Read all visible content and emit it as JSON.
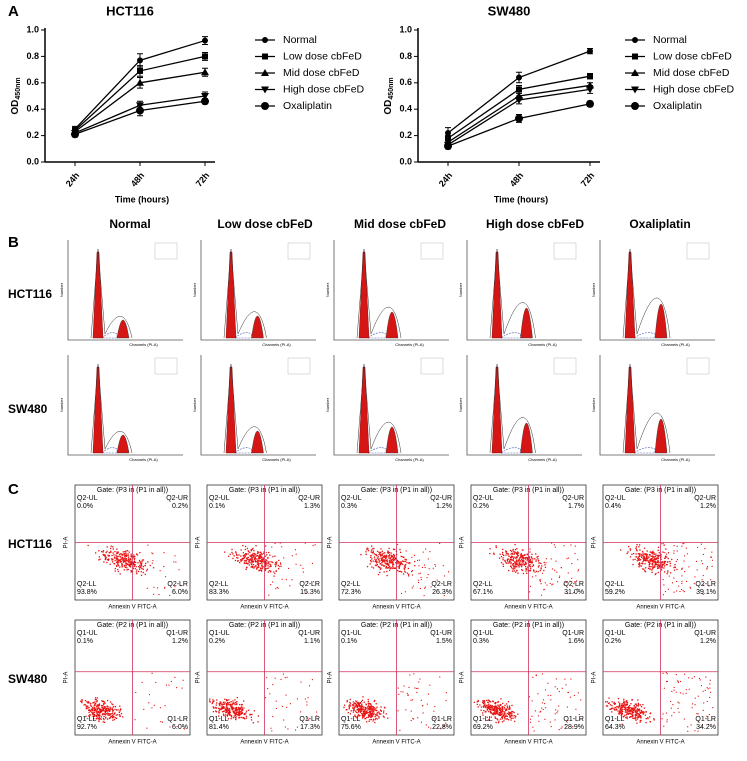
{
  "chart_data": [
    {
      "type": "line",
      "title": "HCT116",
      "xlabel": "Time (hours)",
      "ylabel": {
        "main": "OD",
        "sub": "450nm"
      },
      "categories": [
        "24h",
        "48h",
        "72h"
      ],
      "ylim": [
        0,
        1
      ],
      "yticks": [
        {
          "value": 0,
          "label": "0.0"
        },
        {
          "value": 0.2,
          "label": "0.2"
        },
        {
          "value": 0.4,
          "label": "0.4"
        },
        {
          "value": 0.6,
          "label": "0.6"
        },
        {
          "value": 0.8,
          "label": "0.8"
        },
        {
          "value": 1,
          "label": "1.0"
        }
      ],
      "series": [
        {
          "name": "Normal",
          "color": "#000000",
          "marker": "circle",
          "values": [
            0.25,
            0.77,
            0.92
          ],
          "errors": [
            0.02,
            0.05,
            0.03
          ]
        },
        {
          "name": "Low dose cbFeD",
          "color": "#000000",
          "marker": "square",
          "values": [
            0.24,
            0.69,
            0.8
          ],
          "errors": [
            0.02,
            0.04,
            0.03
          ]
        },
        {
          "name": "Mid dose cbFeD",
          "color": "#000000",
          "marker": "triangle-up",
          "values": [
            0.23,
            0.6,
            0.68
          ],
          "errors": [
            0.02,
            0.04,
            0.03
          ]
        },
        {
          "name": "High dose cbFeD",
          "color": "#000000",
          "marker": "triangle-down",
          "values": [
            0.22,
            0.43,
            0.5
          ],
          "errors": [
            0.02,
            0.03,
            0.03
          ]
        },
        {
          "name": "Oxaliplatin",
          "color": "#000000",
          "marker": "circle-large",
          "values": [
            0.21,
            0.39,
            0.46
          ],
          "errors": [
            0.02,
            0.04,
            0.02
          ]
        }
      ]
    },
    {
      "type": "line",
      "title": "SW480",
      "xlabel": "Time (hours)",
      "ylabel": {
        "main": "OD",
        "sub": "450nm"
      },
      "categories": [
        "24h",
        "48h",
        "72h"
      ],
      "ylim": [
        0,
        1
      ],
      "yticks": [
        {
          "value": 0,
          "label": "0.0"
        },
        {
          "value": 0.2,
          "label": "0.2"
        },
        {
          "value": 0.4,
          "label": "0.4"
        },
        {
          "value": 0.6,
          "label": "0.6"
        },
        {
          "value": 0.8,
          "label": "0.8"
        },
        {
          "value": 1,
          "label": "1.0"
        }
      ],
      "series": [
        {
          "name": "Normal",
          "color": "#000000",
          "marker": "circle",
          "values": [
            0.22,
            0.64,
            0.84
          ],
          "errors": [
            0.04,
            0.04,
            0.02
          ]
        },
        {
          "name": "Low dose cbFeD",
          "color": "#000000",
          "marker": "square",
          "values": [
            0.18,
            0.55,
            0.65
          ],
          "errors": [
            0.02,
            0.03,
            0.02
          ]
        },
        {
          "name": "Mid dose cbFeD",
          "color": "#000000",
          "marker": "triangle-up",
          "values": [
            0.15,
            0.5,
            0.58
          ],
          "errors": [
            0.02,
            0.03,
            0.02
          ]
        },
        {
          "name": "High dose cbFeD",
          "color": "#000000",
          "marker": "triangle-down",
          "values": [
            0.13,
            0.47,
            0.55
          ],
          "errors": [
            0.02,
            0.03,
            0.03
          ]
        },
        {
          "name": "Oxaliplatin",
          "color": "#000000",
          "marker": "circle-large",
          "values": [
            0.12,
            0.33,
            0.44
          ],
          "errors": [
            0.02,
            0.03,
            0.02
          ]
        }
      ]
    }
  ],
  "panel_labels": [
    "A",
    "B",
    "C"
  ],
  "columns": [
    "Normal",
    "Low dose cbFeD",
    "Mid dose cbFeD",
    "High dose cbFeD",
    "Oxaliplatin"
  ],
  "rows": [
    "HCT116",
    "SW480"
  ],
  "cell_cycle": {
    "x_label": "Channels (PI-A)",
    "y_label": "Number"
  },
  "apoptosis": {
    "x_label": "Annexin V FITC-A",
    "y_label": "PI-A",
    "gates": [
      "Gate: (P3 in (P1 in all))",
      "Gate: (P2 in (P1 in all))"
    ],
    "quadrant_names": [
      [
        "Q2-UL",
        "Q2-UR",
        "Q2-LL",
        "Q2-LR"
      ],
      [
        "Q1-UL",
        "Q1-UR",
        "Q1-LL",
        "Q1-LR"
      ]
    ],
    "percentages": [
      [
        [
          "0.0%",
          "0.2%",
          "93.8%",
          "6.0%"
        ],
        [
          "0.1%",
          "1.3%",
          "83.3%",
          "15.3%"
        ],
        [
          "0.3%",
          "1.2%",
          "72.3%",
          "26.3%"
        ],
        [
          "0.2%",
          "1.7%",
          "67.1%",
          "31.0%"
        ],
        [
          "0.4%",
          "1.2%",
          "59.2%",
          "39.1%"
        ]
      ],
      [
        [
          "0.1%",
          "1.2%",
          "92.7%",
          "6.0%"
        ],
        [
          "0.2%",
          "1.1%",
          "81.4%",
          "17.3%"
        ],
        [
          "0.1%",
          "1.5%",
          "75.6%",
          "22.8%"
        ],
        [
          "0.3%",
          "1.6%",
          "69.2%",
          "28.9%"
        ],
        [
          "0.2%",
          "1.2%",
          "64.3%",
          "34.2%"
        ]
      ]
    ]
  }
}
